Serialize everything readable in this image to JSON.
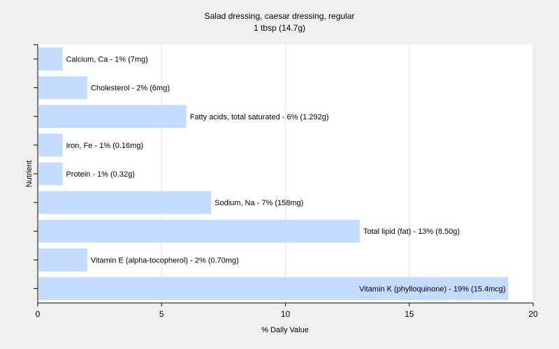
{
  "chart_data": {
    "type": "bar",
    "orientation": "horizontal",
    "title": "Salad dressing, caesar dressing, regular",
    "subtitle": "1 tbsp (14.7g)",
    "xlabel": "% Daily Value",
    "ylabel": "Nutrient",
    "xlim": [
      0,
      20
    ],
    "xticks": [
      0,
      5,
      10,
      15,
      20
    ],
    "grid": true,
    "bar_color": "#c4dcff",
    "bars": [
      {
        "label": "Calcium, Ca - 1% (7mg)",
        "value": 1
      },
      {
        "label": "Cholesterol - 2% (6mg)",
        "value": 2
      },
      {
        "label": "Fatty acids, total saturated - 6% (1.292g)",
        "value": 6
      },
      {
        "label": "Iron, Fe - 1% (0.16mg)",
        "value": 1
      },
      {
        "label": "Protein - 1% (0.32g)",
        "value": 1
      },
      {
        "label": "Sodium, Na - 7% (158mg)",
        "value": 7
      },
      {
        "label": "Total lipid (fat) - 13% (8.50g)",
        "value": 13
      },
      {
        "label": "Vitamin E (alpha-tocopherol) - 2% (0.70mg)",
        "value": 2
      },
      {
        "label": "Vitamin K (phylloquinone) - 19% (15.4mcg)",
        "value": 19
      }
    ]
  }
}
